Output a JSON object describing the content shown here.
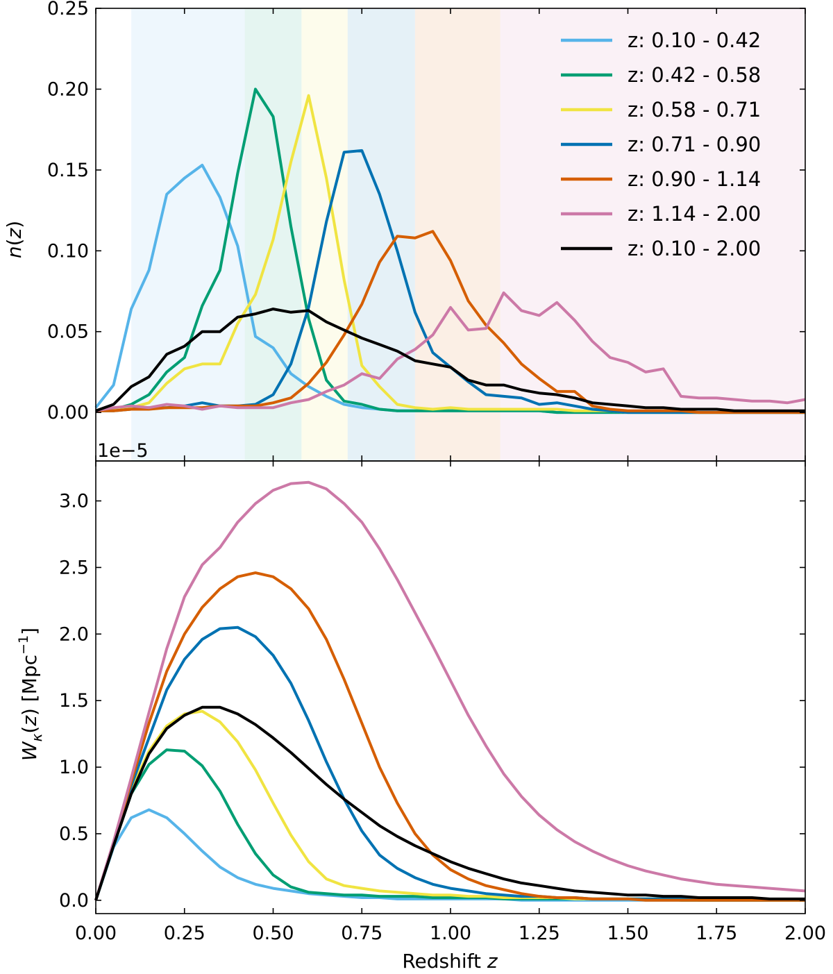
{
  "colors": {
    "bin1": "#56B4E9",
    "bin2": "#009E73",
    "bin3": "#F0E442",
    "bin4": "#0072B2",
    "bin5": "#D55E00",
    "bin6": "#CC79A7",
    "all": "#000000"
  },
  "chart_data": [
    {
      "type": "line",
      "ylabel_math": {
        "base": "n",
        "arg": "z"
      },
      "offset_text": "1e−5",
      "xlim": [
        0,
        2
      ],
      "ylim": [
        -0.03,
        0.25
      ],
      "yticks": [
        0.0,
        0.05,
        0.1,
        0.15,
        0.2,
        0.25
      ],
      "ytick_labels": [
        "0.00",
        "0.05",
        "0.10",
        "0.15",
        "0.20",
        "0.25"
      ],
      "legend": "top-right",
      "shaded_bins": [
        {
          "range": [
            0.1,
            0.42
          ],
          "color": "#56B4E9"
        },
        {
          "range": [
            0.42,
            0.58
          ],
          "color": "#009E73"
        },
        {
          "range": [
            0.58,
            0.71
          ],
          "color": "#F0E442"
        },
        {
          "range": [
            0.71,
            0.9
          ],
          "color": "#0072B2"
        },
        {
          "range": [
            0.9,
            1.14
          ],
          "color": "#D55E00"
        },
        {
          "range": [
            1.14,
            2.0
          ],
          "color": "#CC79A7"
        }
      ],
      "x": [
        0.0,
        0.05,
        0.1,
        0.15,
        0.2,
        0.25,
        0.3,
        0.35,
        0.4,
        0.45,
        0.5,
        0.55,
        0.6,
        0.65,
        0.7,
        0.75,
        0.8,
        0.85,
        0.9,
        0.95,
        1.0,
        1.05,
        1.1,
        1.15,
        1.2,
        1.25,
        1.3,
        1.35,
        1.4,
        1.45,
        1.5,
        1.55,
        1.6,
        1.65,
        1.7,
        1.75,
        1.8,
        1.85,
        1.9,
        1.95,
        2.0
      ],
      "series": [
        {
          "name": "z: 0.10 - 0.42",
          "color": "#56B4E9",
          "values": [
            0.003,
            0.017,
            0.064,
            0.088,
            0.135,
            0.145,
            0.153,
            0.133,
            0.103,
            0.047,
            0.04,
            0.024,
            0.016,
            0.01,
            0.005,
            0.003,
            0.002,
            0.001,
            0.001,
            0.001,
            0.001,
            0.001,
            0.001,
            0.001,
            0.001,
            0.001,
            0.0,
            0.0,
            0.0,
            0.0,
            0.0,
            0.0,
            0.0,
            0.0,
            0.0,
            0.0,
            0.0,
            0.0,
            0.0,
            0.0,
            0.0
          ]
        },
        {
          "name": "z: 0.42 - 0.58",
          "color": "#009E73",
          "values": [
            0.001,
            0.002,
            0.005,
            0.011,
            0.025,
            0.034,
            0.066,
            0.088,
            0.148,
            0.2,
            0.183,
            0.115,
            0.058,
            0.02,
            0.007,
            0.005,
            0.002,
            0.001,
            0.001,
            0.001,
            0.001,
            0.001,
            0.001,
            0.001,
            0.001,
            0.001,
            0.0,
            0.0,
            0.0,
            0.0,
            0.0,
            0.0,
            0.0,
            0.0,
            0.0,
            0.0,
            0.0,
            0.0,
            0.0,
            0.0,
            0.0
          ]
        },
        {
          "name": "z: 0.58 - 0.71",
          "color": "#F0E442",
          "values": [
            0.001,
            0.002,
            0.003,
            0.006,
            0.018,
            0.027,
            0.03,
            0.03,
            0.055,
            0.073,
            0.107,
            0.155,
            0.196,
            0.145,
            0.082,
            0.029,
            0.016,
            0.005,
            0.003,
            0.002,
            0.003,
            0.002,
            0.002,
            0.002,
            0.002,
            0.002,
            0.002,
            0.001,
            0.001,
            0.001,
            0.0,
            0.0,
            0.0,
            0.0,
            0.0,
            0.0,
            0.0,
            0.0,
            0.0,
            0.0,
            0.0
          ]
        },
        {
          "name": "z: 0.71 - 0.90",
          "color": "#0072B2",
          "values": [
            0.001,
            0.001,
            0.002,
            0.003,
            0.003,
            0.004,
            0.006,
            0.004,
            0.004,
            0.005,
            0.011,
            0.03,
            0.065,
            0.118,
            0.161,
            0.162,
            0.135,
            0.1,
            0.062,
            0.037,
            0.028,
            0.019,
            0.011,
            0.01,
            0.009,
            0.005,
            0.006,
            0.004,
            0.002,
            0.001,
            0.0,
            0.0,
            0.0,
            0.0,
            0.0,
            0.0,
            0.0,
            0.0,
            0.0,
            0.0,
            0.0
          ]
        },
        {
          "name": "z: 0.90 - 1.14",
          "color": "#D55E00",
          "values": [
            0.001,
            0.001,
            0.002,
            0.002,
            0.003,
            0.003,
            0.003,
            0.004,
            0.004,
            0.004,
            0.006,
            0.009,
            0.018,
            0.031,
            0.048,
            0.067,
            0.093,
            0.109,
            0.108,
            0.112,
            0.094,
            0.069,
            0.054,
            0.043,
            0.03,
            0.021,
            0.013,
            0.013,
            0.004,
            0.002,
            0.001,
            0.001,
            0.001,
            0.001,
            0.0,
            0.0,
            0.0,
            0.0,
            0.0,
            0.0,
            0.0
          ]
        },
        {
          "name": "z: 1.14 - 2.00",
          "color": "#CC79A7",
          "values": [
            0.001,
            0.003,
            0.004,
            0.003,
            0.005,
            0.004,
            0.002,
            0.004,
            0.003,
            0.003,
            0.003,
            0.006,
            0.008,
            0.013,
            0.017,
            0.024,
            0.021,
            0.033,
            0.039,
            0.048,
            0.065,
            0.051,
            0.052,
            0.074,
            0.063,
            0.06,
            0.068,
            0.057,
            0.044,
            0.034,
            0.031,
            0.025,
            0.027,
            0.01,
            0.009,
            0.009,
            0.008,
            0.007,
            0.007,
            0.006,
            0.008
          ]
        },
        {
          "name": "z: 0.10 - 2.00",
          "color": "#000000",
          "values": [
            0.001,
            0.005,
            0.016,
            0.022,
            0.036,
            0.041,
            0.05,
            0.05,
            0.059,
            0.061,
            0.064,
            0.062,
            0.063,
            0.056,
            0.051,
            0.046,
            0.042,
            0.038,
            0.032,
            0.03,
            0.028,
            0.02,
            0.017,
            0.017,
            0.014,
            0.012,
            0.011,
            0.009,
            0.006,
            0.005,
            0.004,
            0.003,
            0.003,
            0.002,
            0.002,
            0.002,
            0.001,
            0.001,
            0.001,
            0.001,
            0.001
          ]
        }
      ]
    },
    {
      "type": "line",
      "xlabel_parts": {
        "text": "Redshift ",
        "var": "z"
      },
      "ylabel_math": {
        "base": "W",
        "sub": "κ",
        "arg": "z",
        "unit_open": " [Mpc",
        "unit_sup": "−1",
        "unit_close": "]"
      },
      "xlim": [
        0,
        2
      ],
      "ylim": [
        -0.1,
        3.3
      ],
      "xticks": [
        0.0,
        0.25,
        0.5,
        0.75,
        1.0,
        1.25,
        1.5,
        1.75,
        2.0
      ],
      "xtick_labels": [
        "0.00",
        "0.25",
        "0.50",
        "0.75",
        "1.00",
        "1.25",
        "1.50",
        "1.75",
        "2.00"
      ],
      "yticks": [
        0.0,
        0.5,
        1.0,
        1.5,
        2.0,
        2.5,
        3.0
      ],
      "ytick_labels": [
        "0.0",
        "0.5",
        "1.0",
        "1.5",
        "2.0",
        "2.5",
        "3.0"
      ],
      "x": [
        0.0,
        0.05,
        0.1,
        0.15,
        0.2,
        0.25,
        0.3,
        0.35,
        0.4,
        0.45,
        0.5,
        0.55,
        0.6,
        0.65,
        0.7,
        0.75,
        0.8,
        0.85,
        0.9,
        0.95,
        1.0,
        1.05,
        1.1,
        1.15,
        1.2,
        1.25,
        1.3,
        1.35,
        1.4,
        1.45,
        1.5,
        1.55,
        1.6,
        1.65,
        1.7,
        1.75,
        1.8,
        1.85,
        1.9,
        1.95,
        2.0
      ],
      "series": [
        {
          "name": "z: 0.10 - 0.42",
          "color": "#56B4E9",
          "values": [
            0.0,
            0.4,
            0.62,
            0.68,
            0.62,
            0.5,
            0.37,
            0.25,
            0.17,
            0.12,
            0.09,
            0.07,
            0.05,
            0.04,
            0.03,
            0.02,
            0.02,
            0.01,
            0.01,
            0.01,
            0.01,
            0.01,
            0.01,
            0.01,
            0.0,
            0.0,
            0.0,
            0.0,
            0.0,
            0.0,
            0.0,
            0.0,
            0.0,
            0.0,
            0.0,
            0.0,
            0.0,
            0.0,
            0.0,
            0.0,
            0.0
          ]
        },
        {
          "name": "z: 0.42 - 0.58",
          "color": "#009E73",
          "values": [
            0.0,
            0.41,
            0.8,
            1.02,
            1.13,
            1.12,
            1.01,
            0.82,
            0.57,
            0.35,
            0.19,
            0.1,
            0.06,
            0.05,
            0.04,
            0.04,
            0.03,
            0.03,
            0.03,
            0.02,
            0.02,
            0.02,
            0.02,
            0.01,
            0.01,
            0.01,
            0.01,
            0.01,
            0.01,
            0.01,
            0.01,
            0.01,
            0.01,
            0.0,
            0.0,
            0.0,
            0.0,
            0.0,
            0.0,
            0.0,
            0.0
          ]
        },
        {
          "name": "z: 0.58 - 0.71",
          "color": "#F0E442",
          "values": [
            0.0,
            0.42,
            0.83,
            1.12,
            1.31,
            1.4,
            1.42,
            1.34,
            1.19,
            0.98,
            0.73,
            0.49,
            0.29,
            0.16,
            0.11,
            0.09,
            0.07,
            0.06,
            0.05,
            0.04,
            0.04,
            0.03,
            0.03,
            0.02,
            0.02,
            0.02,
            0.02,
            0.01,
            0.01,
            0.01,
            0.01,
            0.01,
            0.01,
            0.01,
            0.0,
            0.0,
            0.0,
            0.0,
            0.0,
            0.0,
            0.0
          ]
        },
        {
          "name": "z: 0.71 - 0.90",
          "color": "#0072B2",
          "values": [
            0.0,
            0.42,
            0.86,
            1.22,
            1.58,
            1.81,
            1.96,
            2.04,
            2.05,
            1.98,
            1.84,
            1.63,
            1.35,
            1.04,
            0.76,
            0.52,
            0.34,
            0.24,
            0.17,
            0.12,
            0.09,
            0.07,
            0.05,
            0.04,
            0.03,
            0.03,
            0.02,
            0.02,
            0.01,
            0.01,
            0.01,
            0.01,
            0.01,
            0.01,
            0.0,
            0.0,
            0.0,
            0.0,
            0.0,
            0.0,
            0.0
          ]
        },
        {
          "name": "z: 0.90 - 1.14",
          "color": "#D55E00",
          "values": [
            0.0,
            0.43,
            0.89,
            1.33,
            1.72,
            2.0,
            2.2,
            2.34,
            2.43,
            2.46,
            2.43,
            2.34,
            2.19,
            1.96,
            1.66,
            1.33,
            1.0,
            0.73,
            0.5,
            0.34,
            0.23,
            0.16,
            0.11,
            0.08,
            0.05,
            0.03,
            0.02,
            0.02,
            0.01,
            0.01,
            0.01,
            0.0,
            0.0,
            0.0,
            0.0,
            0.0,
            0.0,
            0.0,
            0.0,
            0.0,
            0.0
          ]
        },
        {
          "name": "z: 1.14 - 2.00",
          "color": "#CC79A7",
          "values": [
            0.0,
            0.44,
            0.92,
            1.41,
            1.89,
            2.28,
            2.52,
            2.65,
            2.84,
            2.98,
            3.08,
            3.13,
            3.14,
            3.09,
            2.98,
            2.84,
            2.64,
            2.41,
            2.16,
            1.91,
            1.65,
            1.39,
            1.16,
            0.95,
            0.78,
            0.64,
            0.53,
            0.44,
            0.37,
            0.31,
            0.26,
            0.22,
            0.19,
            0.16,
            0.14,
            0.12,
            0.11,
            0.1,
            0.09,
            0.08,
            0.07
          ]
        },
        {
          "name": "z: 0.10 - 2.00",
          "color": "#000000",
          "values": [
            0.0,
            0.41,
            0.8,
            1.1,
            1.29,
            1.39,
            1.45,
            1.45,
            1.4,
            1.32,
            1.22,
            1.11,
            0.99,
            0.87,
            0.76,
            0.66,
            0.56,
            0.48,
            0.41,
            0.35,
            0.29,
            0.24,
            0.2,
            0.16,
            0.13,
            0.11,
            0.09,
            0.07,
            0.06,
            0.05,
            0.04,
            0.04,
            0.03,
            0.03,
            0.02,
            0.02,
            0.02,
            0.02,
            0.01,
            0.01,
            0.01
          ]
        }
      ]
    }
  ]
}
